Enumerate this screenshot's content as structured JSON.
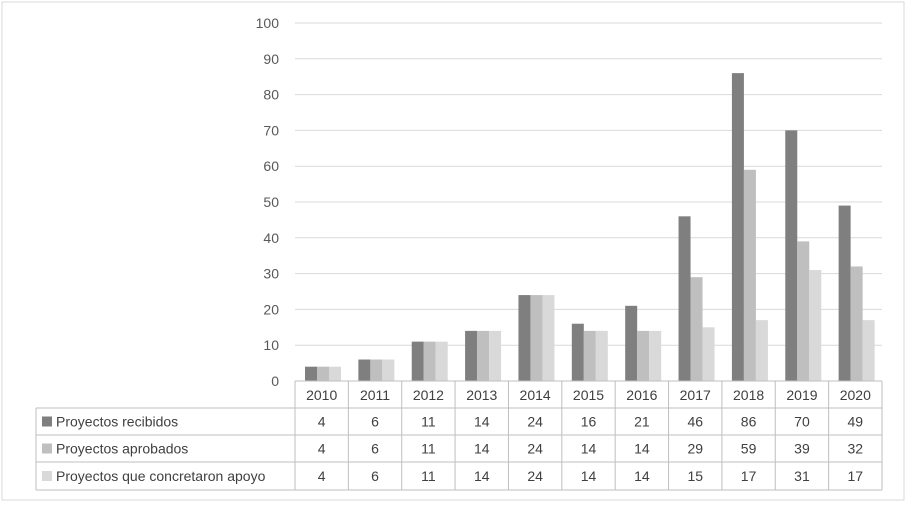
{
  "chart_data": {
    "type": "bar",
    "title": "",
    "xlabel": "",
    "ylabel": "",
    "ylim": [
      0,
      100
    ],
    "yticks": [
      "0",
      "10",
      "20",
      "30",
      "40",
      "50",
      "60",
      "70",
      "80",
      "90",
      "100"
    ],
    "grid": true,
    "legend": "data-table-left",
    "categories": [
      "2010",
      "2011",
      "2012",
      "2013",
      "2014",
      "2015",
      "2016",
      "2017",
      "2018",
      "2019",
      "2020"
    ],
    "series": [
      {
        "name": "Proyectos recibidos",
        "color": "#7f7f7f",
        "values": [
          4,
          6,
          11,
          14,
          24,
          16,
          21,
          46,
          86,
          70,
          49
        ]
      },
      {
        "name": "Proyectos aprobados",
        "color": "#bfbfbf",
        "values": [
          4,
          6,
          11,
          14,
          24,
          14,
          14,
          29,
          59,
          39,
          32
        ]
      },
      {
        "name": "Proyectos que concretaron apoyo",
        "color": "#d9d9d9",
        "values": [
          4,
          6,
          11,
          14,
          24,
          14,
          14,
          15,
          17,
          31,
          17
        ]
      }
    ]
  }
}
